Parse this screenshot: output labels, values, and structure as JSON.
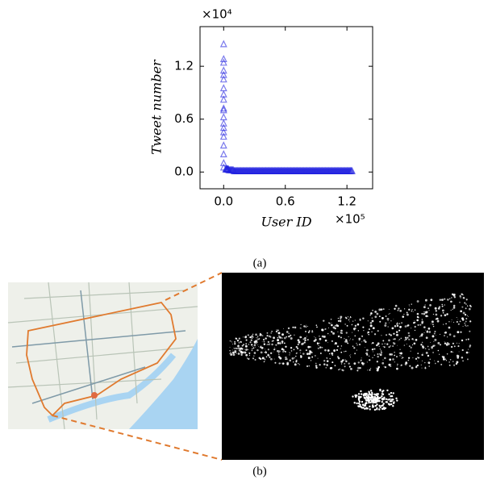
{
  "chart_data": {
    "type": "scatter",
    "x_label": "User ID",
    "y_label": "Tweet number",
    "x_multiplier": "×10⁵",
    "y_multiplier": "×10⁴",
    "xlim": [
      -0.23,
      1.45
    ],
    "ylim": [
      -0.19,
      1.65
    ],
    "xticks": [
      {
        "value": 0,
        "label": "0.0"
      },
      0.6,
      1.2
    ],
    "yticks": [
      {
        "value": 0,
        "label": "0.0"
      },
      0.6,
      1.2
    ],
    "series": [
      {
        "color": "#1f1fe0",
        "marker": "triangle",
        "x": [
          0,
          0,
          0,
          0,
          0,
          0,
          0,
          0,
          0,
          0,
          0,
          0,
          0,
          0,
          0,
          0,
          0,
          0,
          0,
          0,
          0.02,
          0.05,
          0.1,
          0.15,
          0.2,
          0.25,
          0.3,
          0.35,
          0.4,
          0.45,
          0.5,
          0.55,
          0.6,
          0.65,
          0.7,
          0.75,
          0.8,
          0.85,
          0.9,
          0.95,
          1.0,
          1.05,
          1.1,
          1.15,
          1.2,
          1.25
        ],
        "y": [
          1.45,
          1.28,
          1.24,
          1.15,
          1.1,
          1.05,
          0.95,
          0.88,
          0.82,
          0.72,
          0.7,
          0.62,
          0.55,
          0.5,
          0.45,
          0.4,
          0.3,
          0.2,
          0.1,
          0.05,
          0.03,
          0.02,
          0.01,
          0.01,
          0.01,
          0.01,
          0.01,
          0.01,
          0.01,
          0.01,
          0.01,
          0.01,
          0.01,
          0.01,
          0.01,
          0.01,
          0.01,
          0.01,
          0.01,
          0.01,
          0.01,
          0.01,
          0.01,
          0.01,
          0.01,
          0.01
        ]
      }
    ]
  },
  "captions": [
    "(a)",
    "(b)"
  ]
}
